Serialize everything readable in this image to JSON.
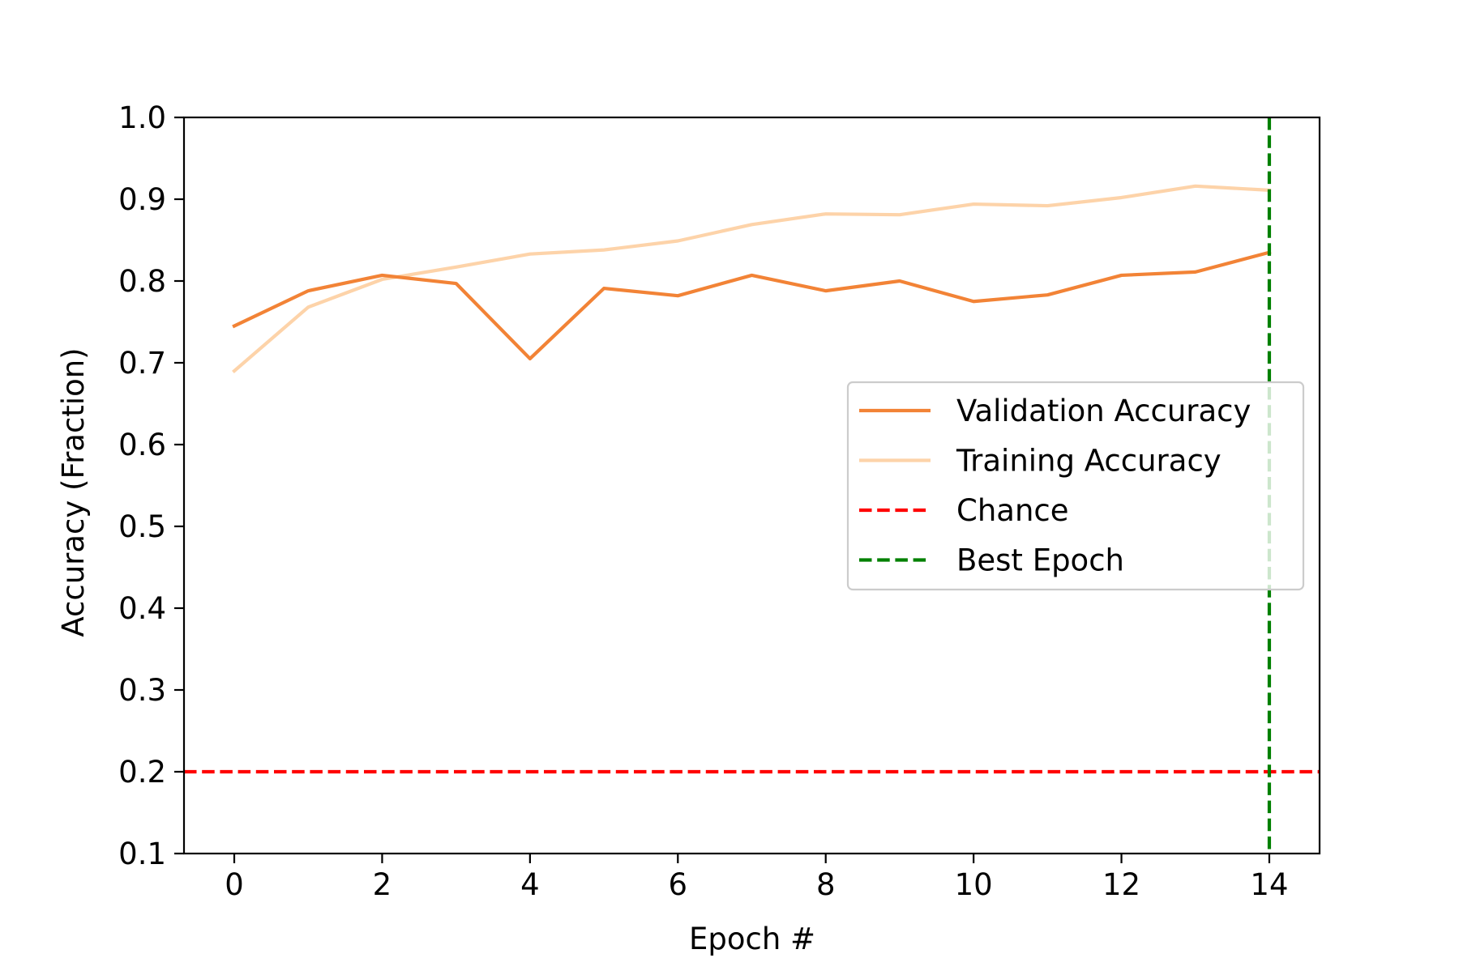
{
  "chart_data": {
    "type": "line",
    "title": "",
    "xlabel": "Epoch #",
    "ylabel": "Accuracy (Fraction)",
    "xlim": [
      -0.68,
      14.68
    ],
    "ylim": [
      0.1,
      1.0
    ],
    "xticks": [
      0,
      2,
      4,
      6,
      8,
      10,
      12,
      14
    ],
    "xtick_labels": [
      "0",
      "2",
      "4",
      "6",
      "8",
      "10",
      "12",
      "14"
    ],
    "yticks": [
      0.1,
      0.2,
      0.3,
      0.4,
      0.5,
      0.6,
      0.7,
      0.8,
      0.9,
      1.0
    ],
    "ytick_labels": [
      "0.1",
      "0.2",
      "0.3",
      "0.4",
      "0.5",
      "0.6",
      "0.7",
      "0.8",
      "0.9",
      "1.0"
    ],
    "grid": false,
    "legend_position": "center-right",
    "x": [
      0,
      1,
      2,
      3,
      4,
      5,
      6,
      7,
      8,
      9,
      10,
      11,
      12,
      13,
      14
    ],
    "series": [
      {
        "name": "Validation Accuracy",
        "color": "#f28336",
        "style": "solid",
        "values": [
          0.745,
          0.788,
          0.807,
          0.797,
          0.705,
          0.791,
          0.782,
          0.807,
          0.788,
          0.8,
          0.775,
          0.783,
          0.807,
          0.811,
          0.835
        ]
      },
      {
        "name": "Training Accuracy",
        "color": "#fdd3a9",
        "style": "solid",
        "values": [
          0.69,
          0.768,
          0.802,
          0.817,
          0.833,
          0.838,
          0.849,
          0.869,
          0.882,
          0.881,
          0.894,
          0.892,
          0.902,
          0.916,
          0.911
        ]
      }
    ],
    "reference_lines": [
      {
        "name": "Chance",
        "orientation": "horizontal",
        "value": 0.2,
        "color": "#ff0000",
        "style": "dashed"
      },
      {
        "name": "Best Epoch",
        "orientation": "vertical",
        "value": 14,
        "color": "#008000",
        "style": "dashed"
      }
    ]
  }
}
